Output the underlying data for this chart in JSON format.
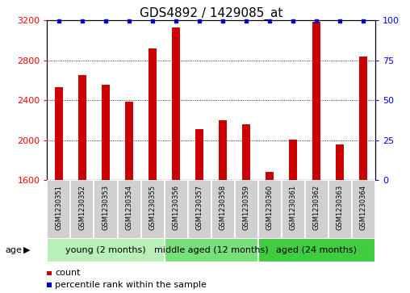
{
  "title": "GDS4892 / 1429085_at",
  "samples": [
    "GSM1230351",
    "GSM1230352",
    "GSM1230353",
    "GSM1230354",
    "GSM1230355",
    "GSM1230356",
    "GSM1230357",
    "GSM1230358",
    "GSM1230359",
    "GSM1230360",
    "GSM1230361",
    "GSM1230362",
    "GSM1230363",
    "GSM1230364"
  ],
  "counts": [
    2530,
    2650,
    2560,
    2385,
    2920,
    3130,
    2110,
    2200,
    2160,
    1680,
    2010,
    3190,
    1960,
    2840
  ],
  "percentile_show": [
    true,
    true,
    true,
    true,
    true,
    true,
    true,
    true,
    true,
    true,
    true,
    true,
    true,
    true
  ],
  "ylim_left": [
    1600,
    3200
  ],
  "ylim_right": [
    0,
    100
  ],
  "yticks_left": [
    1600,
    2000,
    2400,
    2800,
    3200
  ],
  "yticks_right": [
    0,
    25,
    50,
    75,
    100
  ],
  "groups": [
    {
      "label": "young (2 months)",
      "start": 0,
      "end": 5,
      "color": "#b8f0b8"
    },
    {
      "label": "middle aged (12 months)",
      "start": 5,
      "end": 9,
      "color": "#78e078"
    },
    {
      "label": "aged (24 months)",
      "start": 9,
      "end": 14,
      "color": "#40cc40"
    }
  ],
  "bar_color": "#cc0000",
  "marker_color": "#0000bb",
  "cell_color": "#d0d0d0",
  "cell_border": "#ffffff",
  "plot_bg": "#ffffff",
  "title_fontsize": 11,
  "tick_fontsize": 8,
  "sample_fontsize": 6,
  "group_fontsize": 8,
  "legend_fontsize": 8,
  "bar_width": 0.35
}
